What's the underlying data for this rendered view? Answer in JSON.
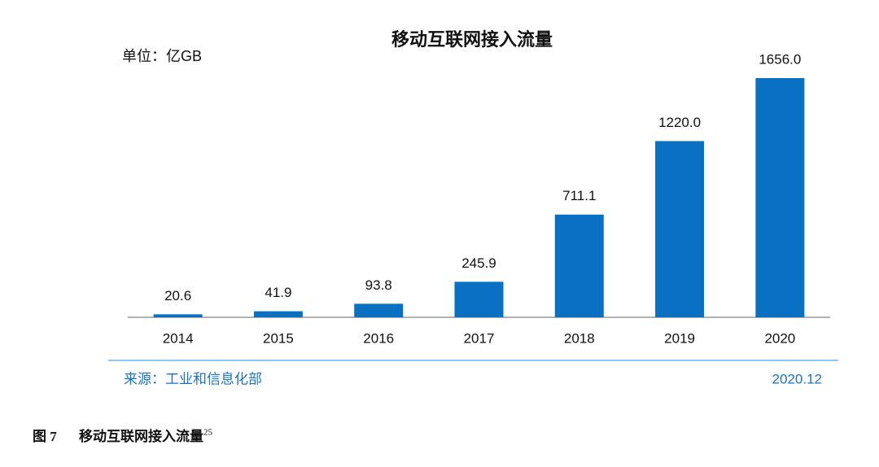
{
  "chart_data": {
    "type": "bar",
    "title": "移动互联网接入流量",
    "unit": "单位：亿GB",
    "categories": [
      "2014",
      "2015",
      "2016",
      "2017",
      "2018",
      "2019",
      "2020"
    ],
    "values": [
      20.6,
      41.9,
      93.8,
      245.9,
      711.1,
      1220,
      1656
    ],
    "value_labels": [
      "20.6",
      "41.9",
      "93.8",
      "245.9",
      "711.1",
      "1220.0",
      "1656.0"
    ],
    "color": "#0a70c2",
    "ylim": [
      0,
      1656
    ],
    "source": "来源：工业和信息化部",
    "date": "2020.12"
  },
  "caption": {
    "label": "图 7",
    "text": "移动互联网接入流量",
    "note": "25"
  }
}
